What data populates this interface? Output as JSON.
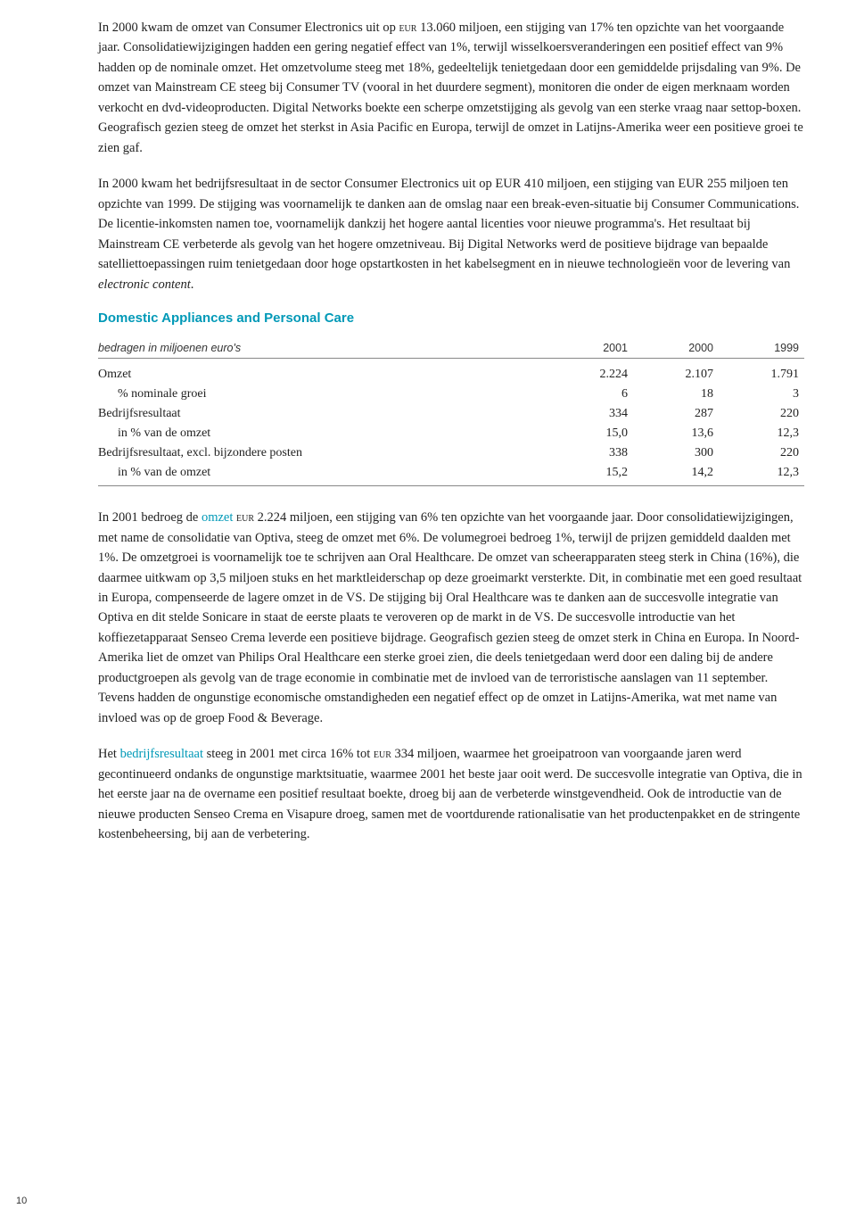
{
  "colors": {
    "heading_teal": "#0099b7",
    "highlight_teal": "#0099b7",
    "body_text": "#222222",
    "rule": "#888888",
    "background": "#ffffff"
  },
  "paragraphs": {
    "p1": "In 2000 kwam de omzet van Consumer Electronics uit op EUR 13.060 miljoen, een stijging van 17% ten opzichte van het voorgaande jaar. Consolidatiewijzigingen hadden een gering negatief effect van 1%, terwijl wisselkoersveranderingen een positief effect van 9% hadden op de nominale omzet. Het omzetvolume steeg met 18%, gedeeltelijk tenietgedaan door een gemiddelde prijsdaling van 9%. De omzet van Mainstream CE steeg bij Consumer TV (vooral in het duurdere segment), monitoren die onder de eigen merknaam worden verkocht en dvd-videoproducten. Digital Networks boekte een scherpe omzetstijging als gevolg van een sterke vraag naar settop-boxen. Geografisch gezien steeg de omzet het sterkst in Asia Pacific en Europa, terwijl de omzet in Latijns-Amerika weer een positieve groei te zien gaf.",
    "p2": "In 2000 kwam het bedrijfsresultaat in de sector Consumer Electronics uit op EUR 410 miljoen, een stijging van EUR 255 miljoen ten opzichte van 1999. De stijging was voornamelijk te danken aan de omslag naar een break-even-situatie bij Consumer Communications. De licentie-inkomsten namen toe, voornamelijk dankzij het hogere aantal licenties voor nieuwe programma's. Het resultaat bij Mainstream CE verbeterde als gevolg van het hogere omzetniveau. Bij Digital Networks werd de positieve bijdrage van bepaalde satelliettoepassingen ruim tenietgedaan door hoge opstartkosten in het kabelsegment en in nieuwe technologieën voor de levering van electronic content.",
    "p3_part1": "In 2001 bedroeg de ",
    "p3_highlight": "omzet",
    "p3_part2": " EUR 2.224 miljoen, een stijging van 6% ten opzichte van het voorgaande jaar. Door consolidatiewijzigingen, met name de consolidatie van Optiva, steeg de omzet met 6%. De volumegroei bedroeg 1%, terwijl de prijzen gemiddeld daalden met 1%. De omzetgroei is voornamelijk toe te schrijven aan Oral Healthcare. De omzet van scheerapparaten steeg sterk in China (16%), die daarmee uitkwam op 3,5 miljoen stuks en het marktleiderschap op deze groeimarkt versterkte. Dit, in combinatie met een goed resultaat in Europa, compenseerde de lagere omzet in de VS. De stijging bij Oral Healthcare was te danken aan de succesvolle integratie van Optiva en dit stelde Sonicare in staat de eerste plaats te veroveren op de markt in de VS. De succesvolle introductie van het koffiezetapparaat Senseo Crema leverde een positieve bijdrage. Geografisch gezien steeg de omzet sterk in China en Europa. In Noord-Amerika liet de omzet van Philips Oral Healthcare een sterke groei zien, die deels tenietgedaan werd door een daling bij de andere productgroepen als gevolg van de trage economie in combinatie met de invloed van de terroristische aanslagen van 11 september. Tevens hadden de ongunstige economische omstandigheden een negatief effect op de omzet in Latijns-Amerika, wat met name van invloed was op de groep Food & Beverage.",
    "p4_part1": "Het ",
    "p4_highlight": "bedrijfsresultaat",
    "p4_part2": " steeg in 2001 met circa 16% tot EUR 334 miljoen, waarmee het groeipatroon van voorgaande jaren werd gecontinueerd ondanks de ongunstige marktsituatie, waarmee 2001 het beste jaar ooit werd. De succesvolle integratie van Optiva, die in het eerste jaar na de overname een positief resultaat boekte, droeg bij aan de verbeterde winstgevendheid. Ook de introductie van de nieuwe producten Senseo Crema en Visapure droeg, samen met de voortdurende rationalisatie van het productenpakket en de stringente kostenbeheersing, bij aan de verbetering."
  },
  "section_heading": "Domestic Appliances and Personal Care",
  "table": {
    "caption": "bedragen in miljoenen euro's",
    "columns": [
      "2001",
      "2000",
      "1999"
    ],
    "rows": [
      {
        "label": "Omzet",
        "indent": false,
        "values": [
          "2.224",
          "2.107",
          "1.791"
        ]
      },
      {
        "label": "% nominale groei",
        "indent": true,
        "values": [
          "6",
          "18",
          "3"
        ]
      },
      {
        "label": "Bedrijfsresultaat",
        "indent": false,
        "values": [
          "334",
          "287",
          "220"
        ]
      },
      {
        "label": "in % van de omzet",
        "indent": true,
        "values": [
          "15,0",
          "13,6",
          "12,3"
        ]
      },
      {
        "label": "Bedrijfsresultaat, excl. bijzondere posten",
        "indent": false,
        "values": [
          "338",
          "300",
          "220"
        ]
      },
      {
        "label": "in % van de omzet",
        "indent": true,
        "values": [
          "15,2",
          "14,2",
          "12,3"
        ]
      }
    ]
  },
  "page_number": "10"
}
